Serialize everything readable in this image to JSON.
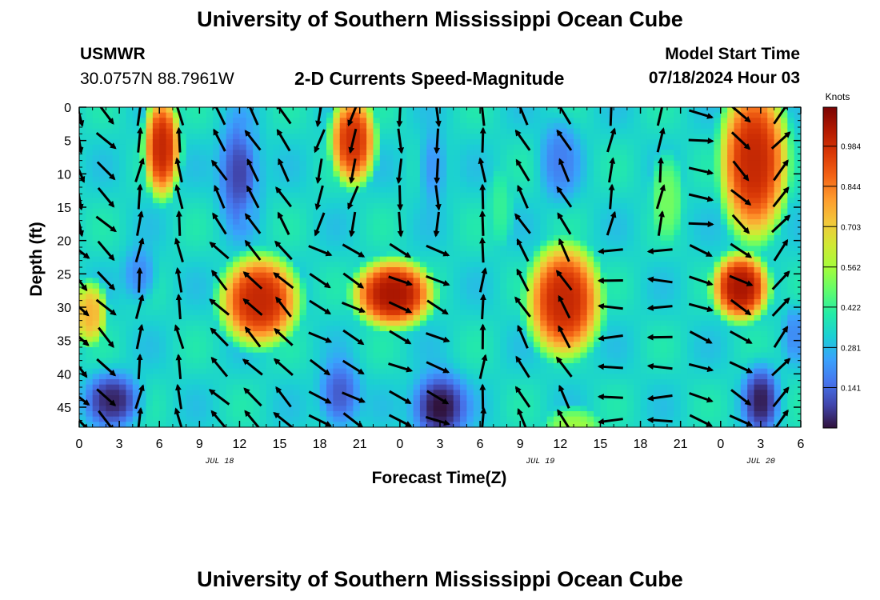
{
  "header": {
    "title": "University of Southern Mississippi Ocean Cube",
    "station": "USMWR",
    "coords": "30.0757N  88.7961W",
    "subtitle": "2-D Currents Speed-Magnitude",
    "model_label": "Model Start Time",
    "model_time": "07/18/2024 Hour 03"
  },
  "footer": {
    "title": "University of Southern Mississippi Ocean Cube"
  },
  "chart_data": {
    "type": "heatmap",
    "title": "2-D Currents Speed-Magnitude",
    "xlabel": "Forecast Time(Z)",
    "ylabel": "Depth (ft)",
    "x_tick_labels": [
      "0",
      "3",
      "6",
      "9",
      "12",
      "15",
      "18",
      "21",
      "0",
      "3",
      "6",
      "9",
      "12",
      "15",
      "18",
      "21",
      "0",
      "3",
      "6"
    ],
    "x_hours": [
      0,
      54
    ],
    "date_labels": [
      {
        "label": "JUL 18",
        "hour": 10.5
      },
      {
        "label": "JUL 19",
        "hour": 34.5
      },
      {
        "label": "JUL 20",
        "hour": 51
      }
    ],
    "y_ticks": [
      0,
      5,
      10,
      15,
      20,
      25,
      30,
      35,
      40,
      45
    ],
    "y_range": [
      0,
      48
    ],
    "y_inverted": true,
    "colorbar": {
      "unit": "Knots",
      "tick_labels": [
        "0.984",
        "0.844",
        "0.703",
        "0.562",
        "0.422",
        "0.281",
        "0.141"
      ],
      "tick_values": [
        0.984,
        0.844,
        0.703,
        0.562,
        0.422,
        0.281,
        0.141
      ],
      "range": [
        0,
        1.12
      ],
      "colors": [
        "#30123b",
        "#4145ab",
        "#4675ed",
        "#39a2fc",
        "#1bcfd4",
        "#24eca6",
        "#61fc6c",
        "#a4fc3b",
        "#d1e834",
        "#f3c63a",
        "#fe9b2d",
        "#f36315",
        "#d93806",
        "#b11901",
        "#7a0403"
      ]
    },
    "speed_blobs": [
      {
        "hour": 6.2,
        "depth": 6,
        "rh": 1.6,
        "rd": 9,
        "value": 1.0
      },
      {
        "hour": 20.5,
        "depth": 5,
        "rh": 2.0,
        "rd": 8,
        "value": 0.98
      },
      {
        "hour": 50.5,
        "depth": 8,
        "rh": 3.0,
        "rd": 14,
        "value": 1.0
      },
      {
        "hour": 13.5,
        "depth": 29,
        "rh": 3.5,
        "rd": 8,
        "value": 1.0
      },
      {
        "hour": 0.8,
        "depth": 31,
        "rh": 1.6,
        "rd": 6,
        "value": 0.75
      },
      {
        "hour": 23.5,
        "depth": 28,
        "rh": 3.5,
        "rd": 6,
        "value": 1.05
      },
      {
        "hour": 36.3,
        "depth": 29,
        "rh": 3.3,
        "rd": 10,
        "value": 1.0
      },
      {
        "hour": 49.5,
        "depth": 27,
        "rh": 2.5,
        "rd": 6,
        "value": 1.05
      },
      {
        "hour": 12.5,
        "depth": 10,
        "rh": 1.5,
        "rd": 10,
        "value": 0.5
      },
      {
        "hour": 44,
        "depth": 14,
        "rh": 1.8,
        "rd": 10,
        "value": 0.5
      },
      {
        "hour": 37,
        "depth": 48,
        "rh": 3.0,
        "rd": 4,
        "value": 0.55
      },
      {
        "hour": 31.5,
        "depth": 15,
        "rh": 1.5,
        "rd": 10,
        "value": 0.42
      }
    ],
    "low_blobs": [
      {
        "hour": 12,
        "depth": 10,
        "rh": 1.5,
        "rd": 8,
        "value": 0.08
      },
      {
        "hour": 36,
        "depth": 8,
        "rh": 1.5,
        "rd": 6,
        "value": 0.18
      },
      {
        "hour": 2.5,
        "depth": 44,
        "rh": 2.0,
        "rd": 4,
        "value": 0.03
      },
      {
        "hour": 27,
        "depth": 45,
        "rh": 2.0,
        "rd": 5,
        "value": 0.0
      },
      {
        "hour": 51,
        "depth": 44,
        "rh": 1.3,
        "rd": 5,
        "value": 0.02
      },
      {
        "hour": 19.5,
        "depth": 43,
        "rh": 1.5,
        "rd": 5,
        "value": 0.12
      },
      {
        "hour": 4.5,
        "depth": 25,
        "rh": 1.2,
        "rd": 4,
        "value": 0.2
      },
      {
        "hour": 26.5,
        "depth": 9,
        "rh": 1.0,
        "rd": 6,
        "value": 0.22
      },
      {
        "hour": 53.5,
        "depth": 34,
        "rh": 0.8,
        "rd": 4,
        "value": 0.2
      }
    ],
    "arrow_times": [
      0,
      2,
      4.5,
      7.5,
      10.5,
      13,
      15.3,
      18,
      20.5,
      24,
      26.8,
      30.2,
      33.2,
      36.3,
      39.8,
      43.5,
      46.5,
      49.5,
      52.5
    ],
    "arrow_depths": [
      1,
      5,
      9.5,
      13.5,
      17.5,
      21.5,
      26,
      30,
      34.5,
      39,
      43.5,
      47
    ],
    "arrow_directions_deg": {
      "hour_0_depth_0_to_15": 165,
      "hour_0_depth_25_to_45": 135,
      "hour_6": 0,
      "hour_13": 330,
      "hour_24_depth_0_to_20": 180,
      "hour_24_depth_25_to_47": 115,
      "hour_29": 0,
      "hour_37": 330,
      "hour_43": 0,
      "hour_49_depth_0_to_15": 135,
      "hour_49_depth_25_to_45": 120,
      "hour_53": 40
    }
  }
}
